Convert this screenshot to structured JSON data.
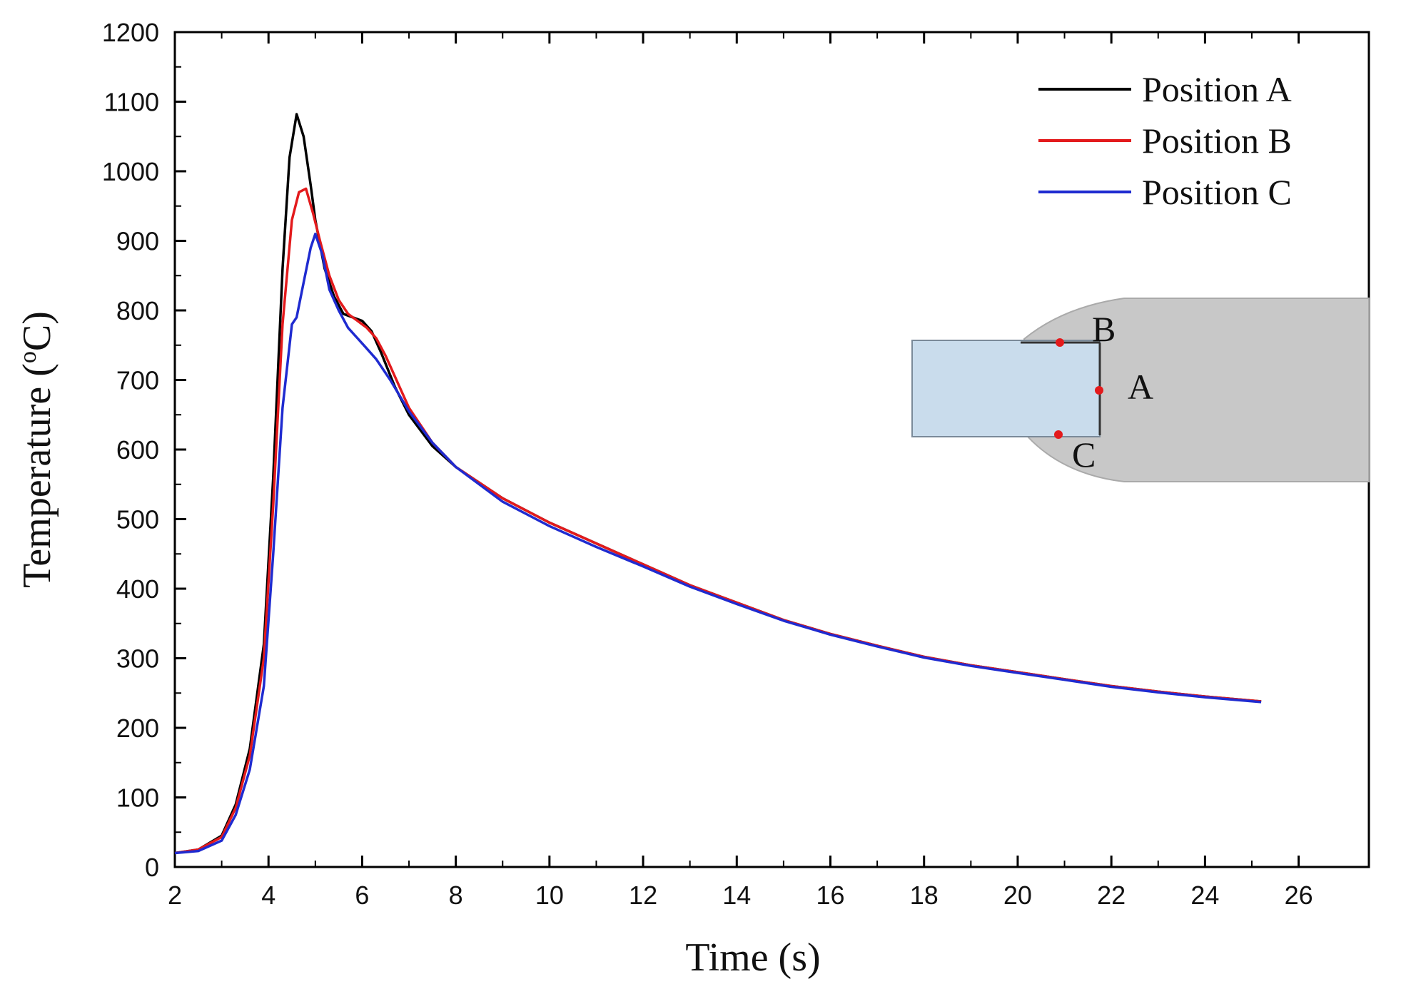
{
  "chart_data": {
    "type": "line",
    "title": "",
    "xlabel": "Time (s)",
    "ylabel_main": "Temperature (",
    "ylabel_sup": "o",
    "ylabel_unit": "C)",
    "xlim": [
      2,
      27.5
    ],
    "ylim": [
      0,
      1200
    ],
    "xticks": [
      2,
      4,
      6,
      8,
      10,
      12,
      14,
      16,
      18,
      20,
      22,
      24,
      26
    ],
    "xtick_labels": [
      "2",
      "4",
      "6",
      "8",
      "10",
      "12",
      "14",
      "16",
      "18",
      "20",
      "22",
      "24",
      "26"
    ],
    "yticks": [
      0,
      100,
      200,
      300,
      400,
      500,
      600,
      700,
      800,
      900,
      1000,
      1100,
      1200
    ],
    "ytick_labels": [
      "0",
      "100",
      "200",
      "300",
      "400",
      "500",
      "600",
      "700",
      "800",
      "900",
      "1000",
      "1100",
      "1200"
    ],
    "grid": false,
    "legend_position": "top-right",
    "series": [
      {
        "name": "Position A",
        "color": "#000000",
        "x": [
          2,
          2.5,
          3,
          3.3,
          3.6,
          3.9,
          4.1,
          4.3,
          4.45,
          4.6,
          4.75,
          4.9,
          5.0,
          5.2,
          5.4,
          5.6,
          5.8,
          6.0,
          6.2,
          6.4,
          6.7,
          7.0,
          7.5,
          8,
          9,
          10,
          11,
          12,
          13,
          14,
          15,
          16,
          17,
          18,
          19,
          20,
          21,
          22,
          23,
          24,
          25.2
        ],
        "y": [
          20,
          25,
          45,
          90,
          170,
          320,
          560,
          860,
          1020,
          1082,
          1050,
          980,
          930,
          860,
          820,
          795,
          790,
          785,
          770,
          740,
          690,
          650,
          605,
          575,
          530,
          495,
          465,
          435,
          405,
          380,
          355,
          335,
          318,
          302,
          290,
          280,
          270,
          260,
          252,
          245,
          238
        ]
      },
      {
        "name": "Position B",
        "color": "#e31a1c",
        "x": [
          2,
          2.5,
          3,
          3.3,
          3.6,
          3.9,
          4.1,
          4.3,
          4.5,
          4.65,
          4.8,
          4.95,
          5.1,
          5.3,
          5.5,
          5.7,
          5.9,
          6.1,
          6.3,
          6.5,
          6.8,
          7.0,
          7.5,
          8,
          9,
          10,
          11,
          12,
          13,
          14,
          15,
          16,
          17,
          18,
          19,
          20,
          21,
          22,
          23,
          24,
          25.2
        ],
        "y": [
          20,
          25,
          43,
          85,
          160,
          300,
          520,
          780,
          930,
          970,
          975,
          940,
          900,
          850,
          815,
          795,
          785,
          775,
          760,
          735,
          690,
          660,
          610,
          575,
          530,
          495,
          465,
          435,
          405,
          380,
          355,
          335,
          318,
          302,
          290,
          280,
          270,
          260,
          252,
          245,
          238
        ]
      },
      {
        "name": "Position C",
        "color": "#1f2bd0",
        "x": [
          2,
          2.5,
          3,
          3.3,
          3.6,
          3.9,
          4.1,
          4.3,
          4.5,
          4.6,
          4.75,
          4.9,
          5.0,
          5.15,
          5.3,
          5.5,
          5.7,
          5.9,
          6.1,
          6.3,
          6.6,
          7.0,
          7.5,
          8,
          9,
          10,
          11,
          12,
          13,
          14,
          15,
          16,
          17,
          18,
          19,
          20,
          21,
          22,
          23,
          24,
          25.2
        ],
        "y": [
          20,
          23,
          38,
          75,
          140,
          260,
          450,
          660,
          780,
          790,
          840,
          890,
          910,
          880,
          830,
          800,
          775,
          760,
          745,
          730,
          700,
          655,
          610,
          575,
          525,
          490,
          460,
          432,
          403,
          378,
          354,
          334,
          317,
          301,
          289,
          279,
          269,
          259,
          251,
          244,
          237
        ]
      }
    ],
    "inset": {
      "points": [
        {
          "label": "A",
          "color": "#e31a1c"
        },
        {
          "label": "B",
          "color": "#e31a1c"
        },
        {
          "label": "C",
          "color": "#e31a1c"
        }
      ],
      "plate_color": "#c9dcec",
      "weld_color": "#c8c8c8"
    }
  }
}
